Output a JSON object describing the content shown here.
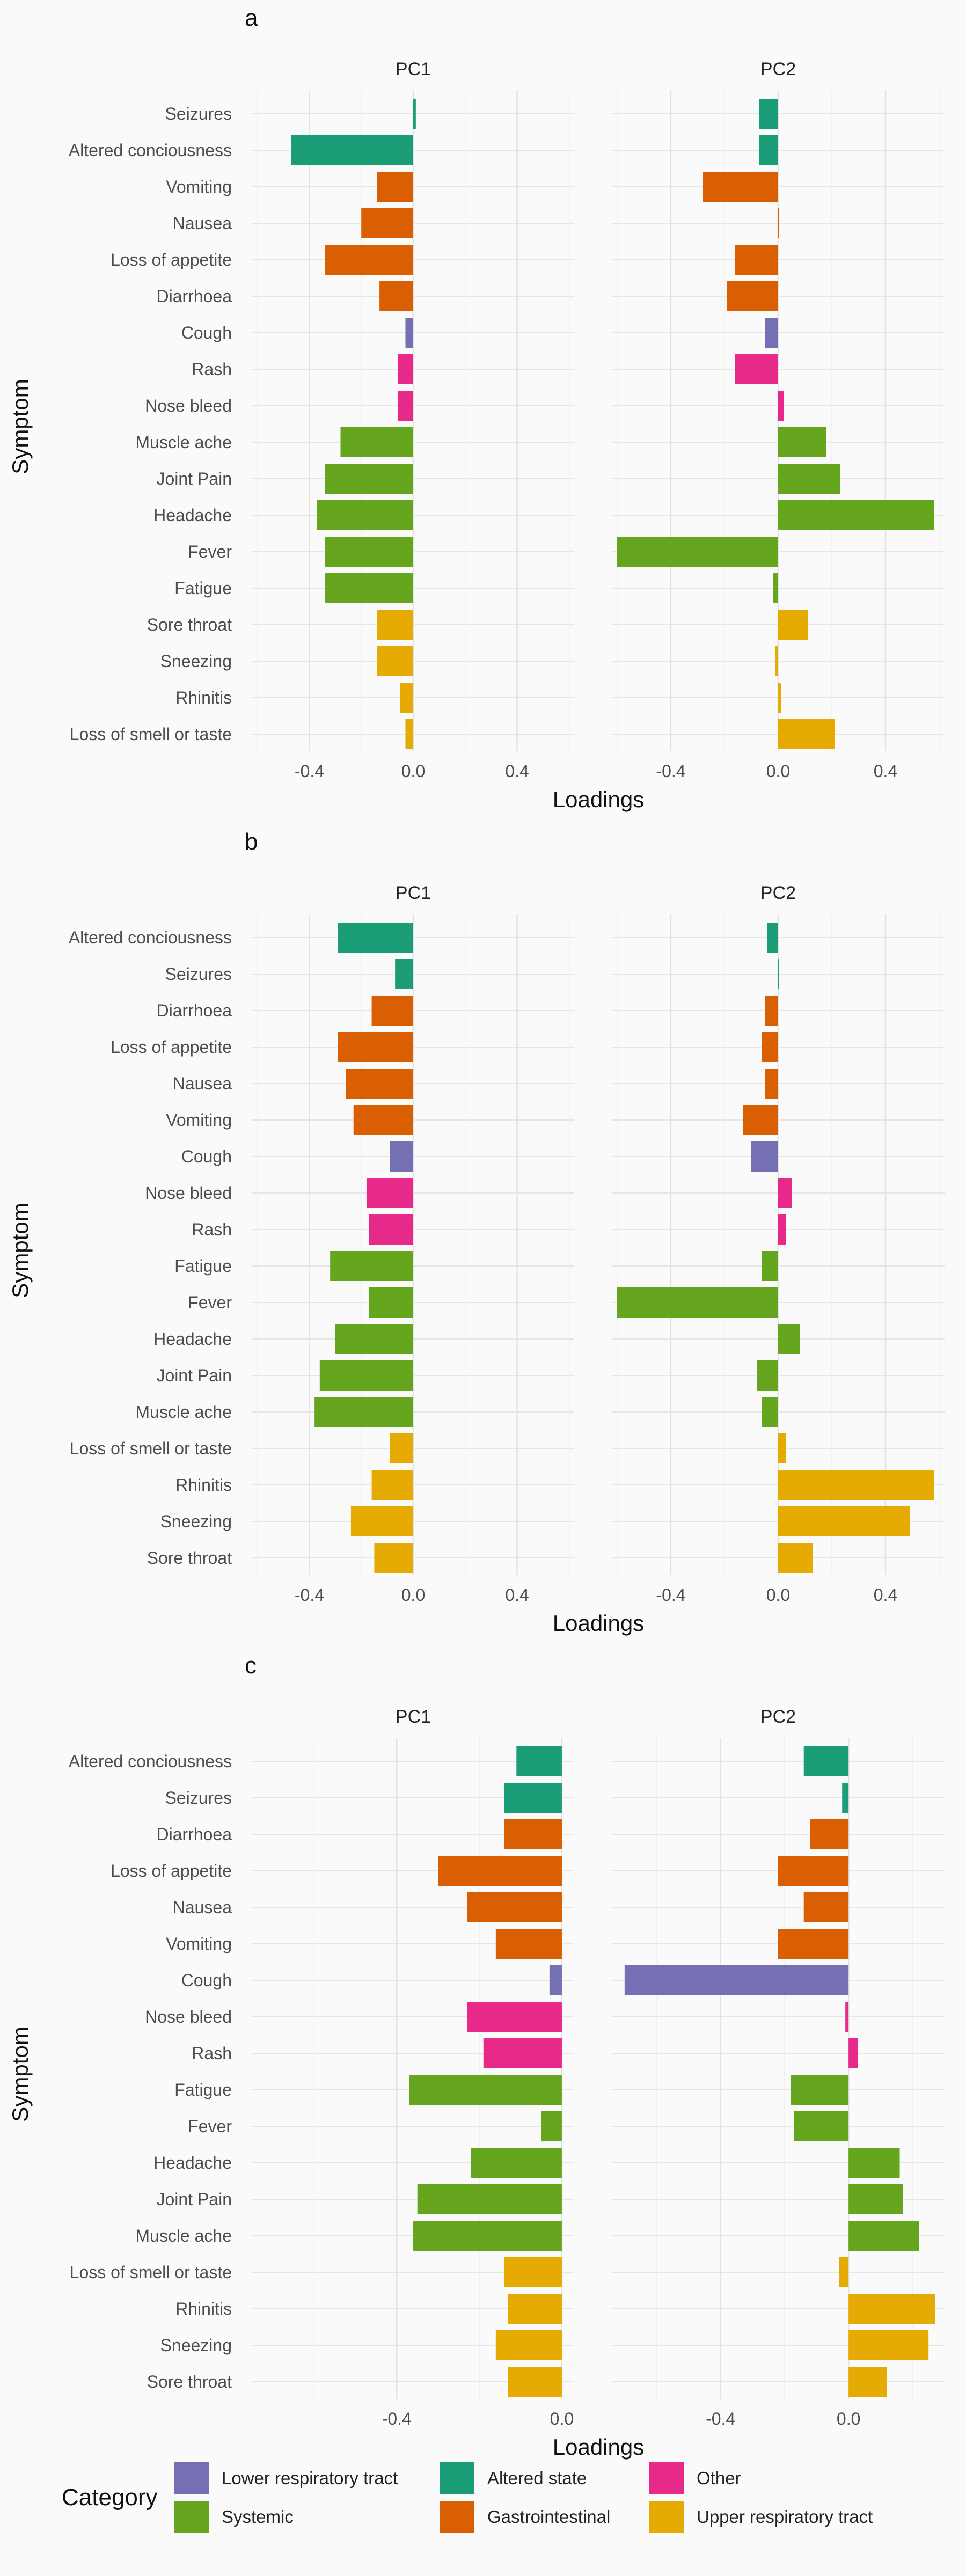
{
  "colors": {
    "Lower respiratory tract": "#7570b3",
    "Altered state": "#1b9e77",
    "Other": "#e7298a",
    "Systemic": "#66a61e",
    "Gastrointestinal": "#d95f02",
    "Upper respiratory tract": "#e6ab02"
  },
  "legend": {
    "title": "Category",
    "entries": [
      {
        "label": "Lower respiratory tract",
        "category": "Lower respiratory tract"
      },
      {
        "label": "Altered state",
        "category": "Altered state"
      },
      {
        "label": "Other",
        "category": "Other"
      },
      {
        "label": "Systemic",
        "category": "Systemic"
      },
      {
        "label": "Gastrointestinal",
        "category": "Gastrointestinal"
      },
      {
        "label": "Upper respiratory tract",
        "category": "Upper respiratory tract"
      }
    ]
  },
  "chart_data": [
    {
      "type": "bar",
      "panel_label": "a",
      "xlabel": "Loadings",
      "ylabel": "Symptom",
      "facets": [
        "PC1",
        "PC2"
      ],
      "facet_ranges": {
        "PC1": [
          -0.62,
          0.62
        ],
        "PC2": [
          -0.62,
          0.62
        ]
      },
      "facet_ticks": {
        "PC1": [
          -0.4,
          0.0,
          0.4
        ],
        "PC2": [
          -0.4,
          0.0,
          0.4
        ]
      },
      "tick_labels": {
        "PC1": [
          "-0.4",
          "0.0",
          "0.4"
        ],
        "PC2": [
          "-0.4",
          "0.0",
          "0.4"
        ]
      },
      "grid": true,
      "rows": [
        {
          "symptom": "Seizures",
          "category": "Altered state",
          "PC1": 0.01,
          "PC2": -0.07
        },
        {
          "symptom": "Altered conciousness",
          "category": "Altered state",
          "PC1": -0.47,
          "PC2": -0.07
        },
        {
          "symptom": "Vomiting",
          "category": "Gastrointestinal",
          "PC1": -0.14,
          "PC2": -0.28
        },
        {
          "symptom": "Nausea",
          "category": "Gastrointestinal",
          "PC1": -0.2,
          "PC2": 0.0
        },
        {
          "symptom": "Loss of appetite",
          "category": "Gastrointestinal",
          "PC1": -0.34,
          "PC2": -0.16
        },
        {
          "symptom": "Diarrhoea",
          "category": "Gastrointestinal",
          "PC1": -0.13,
          "PC2": -0.19
        },
        {
          "symptom": "Cough",
          "category": "Lower respiratory tract",
          "PC1": -0.03,
          "PC2": -0.05
        },
        {
          "symptom": "Rash",
          "category": "Other",
          "PC1": -0.06,
          "PC2": -0.16
        },
        {
          "symptom": "Nose bleed",
          "category": "Other",
          "PC1": -0.06,
          "PC2": 0.02
        },
        {
          "symptom": "Muscle ache",
          "category": "Systemic",
          "PC1": -0.28,
          "PC2": 0.18
        },
        {
          "symptom": "Joint Pain",
          "category": "Systemic",
          "PC1": -0.34,
          "PC2": 0.23
        },
        {
          "symptom": "Headache",
          "category": "Systemic",
          "PC1": -0.37,
          "PC2": 0.58
        },
        {
          "symptom": "Fever",
          "category": "Systemic",
          "PC1": -0.34,
          "PC2": -0.6
        },
        {
          "symptom": "Fatigue",
          "category": "Systemic",
          "PC1": -0.34,
          "PC2": -0.02
        },
        {
          "symptom": "Sore throat",
          "category": "Upper respiratory tract",
          "PC1": -0.14,
          "PC2": 0.11
        },
        {
          "symptom": "Sneezing",
          "category": "Upper respiratory tract",
          "PC1": -0.14,
          "PC2": -0.01
        },
        {
          "symptom": "Rhinitis",
          "category": "Upper respiratory tract",
          "PC1": -0.05,
          "PC2": 0.01
        },
        {
          "symptom": "Loss of smell or taste",
          "category": "Upper respiratory tract",
          "PC1": -0.03,
          "PC2": 0.21
        }
      ]
    },
    {
      "type": "bar",
      "panel_label": "b",
      "xlabel": "Loadings",
      "ylabel": "Symptom",
      "facets": [
        "PC1",
        "PC2"
      ],
      "facet_ranges": {
        "PC1": [
          -0.62,
          0.62
        ],
        "PC2": [
          -0.62,
          0.62
        ]
      },
      "facet_ticks": {
        "PC1": [
          -0.4,
          0.0,
          0.4
        ],
        "PC2": [
          -0.4,
          0.0,
          0.4
        ]
      },
      "tick_labels": {
        "PC1": [
          "-0.4",
          "0.0",
          "0.4"
        ],
        "PC2": [
          "-0.4",
          "0.0",
          "0.4"
        ]
      },
      "grid": true,
      "rows": [
        {
          "symptom": "Altered conciousness",
          "category": "Altered state",
          "PC1": -0.29,
          "PC2": -0.04
        },
        {
          "symptom": "Seizures",
          "category": "Altered state",
          "PC1": -0.07,
          "PC2": 0.0
        },
        {
          "symptom": "Diarrhoea",
          "category": "Gastrointestinal",
          "PC1": -0.16,
          "PC2": -0.05
        },
        {
          "symptom": "Loss of appetite",
          "category": "Gastrointestinal",
          "PC1": -0.29,
          "PC2": -0.06
        },
        {
          "symptom": "Nausea",
          "category": "Gastrointestinal",
          "PC1": -0.26,
          "PC2": -0.05
        },
        {
          "symptom": "Vomiting",
          "category": "Gastrointestinal",
          "PC1": -0.23,
          "PC2": -0.13
        },
        {
          "symptom": "Cough",
          "category": "Lower respiratory tract",
          "PC1": -0.09,
          "PC2": -0.1
        },
        {
          "symptom": "Nose bleed",
          "category": "Other",
          "PC1": -0.18,
          "PC2": 0.05
        },
        {
          "symptom": "Rash",
          "category": "Other",
          "PC1": -0.17,
          "PC2": 0.03
        },
        {
          "symptom": "Fatigue",
          "category": "Systemic",
          "PC1": -0.32,
          "PC2": -0.06
        },
        {
          "symptom": "Fever",
          "category": "Systemic",
          "PC1": -0.17,
          "PC2": -0.6
        },
        {
          "symptom": "Headache",
          "category": "Systemic",
          "PC1": -0.3,
          "PC2": 0.08
        },
        {
          "symptom": "Joint Pain",
          "category": "Systemic",
          "PC1": -0.36,
          "PC2": -0.08
        },
        {
          "symptom": "Muscle ache",
          "category": "Systemic",
          "PC1": -0.38,
          "PC2": -0.06
        },
        {
          "symptom": "Loss of smell or taste",
          "category": "Upper respiratory tract",
          "PC1": -0.09,
          "PC2": 0.03
        },
        {
          "symptom": "Rhinitis",
          "category": "Upper respiratory tract",
          "PC1": -0.16,
          "PC2": 0.58
        },
        {
          "symptom": "Sneezing",
          "category": "Upper respiratory tract",
          "PC1": -0.24,
          "PC2": 0.49
        },
        {
          "symptom": "Sore throat",
          "category": "Upper respiratory tract",
          "PC1": -0.15,
          "PC2": 0.13
        }
      ]
    },
    {
      "type": "bar",
      "panel_label": "c",
      "xlabel": "Loadings",
      "ylabel": "Symptom",
      "facets": [
        "PC1",
        "PC2"
      ],
      "facet_ranges": {
        "PC1": [
          -0.75,
          0.03
        ],
        "PC2": [
          -0.74,
          0.3
        ]
      },
      "facet_ticks": {
        "PC1": [
          -0.4,
          0.0
        ],
        "PC2": [
          -0.4,
          0.0
        ]
      },
      "tick_labels": {
        "PC1": [
          "-0.4",
          "0.0"
        ],
        "PC2": [
          "-0.4",
          "0.0"
        ]
      },
      "grid": true,
      "rows": [
        {
          "symptom": "Altered conciousness",
          "category": "Altered state",
          "PC1": -0.11,
          "PC2": -0.14
        },
        {
          "symptom": "Seizures",
          "category": "Altered state",
          "PC1": -0.14,
          "PC2": -0.02
        },
        {
          "symptom": "Diarrhoea",
          "category": "Gastrointestinal",
          "PC1": -0.14,
          "PC2": -0.12
        },
        {
          "symptom": "Loss of appetite",
          "category": "Gastrointestinal",
          "PC1": -0.3,
          "PC2": -0.22
        },
        {
          "symptom": "Nausea",
          "category": "Gastrointestinal",
          "PC1": -0.23,
          "PC2": -0.14
        },
        {
          "symptom": "Vomiting",
          "category": "Gastrointestinal",
          "PC1": -0.16,
          "PC2": -0.22
        },
        {
          "symptom": "Cough",
          "category": "Lower respiratory tract",
          "PC1": -0.03,
          "PC2": -0.7
        },
        {
          "symptom": "Nose bleed",
          "category": "Other",
          "PC1": -0.23,
          "PC2": -0.01
        },
        {
          "symptom": "Rash",
          "category": "Other",
          "PC1": -0.19,
          "PC2": 0.03
        },
        {
          "symptom": "Fatigue",
          "category": "Systemic",
          "PC1": -0.37,
          "PC2": -0.18
        },
        {
          "symptom": "Fever",
          "category": "Systemic",
          "PC1": -0.05,
          "PC2": -0.17
        },
        {
          "symptom": "Headache",
          "category": "Systemic",
          "PC1": -0.22,
          "PC2": 0.16
        },
        {
          "symptom": "Joint Pain",
          "category": "Systemic",
          "PC1": -0.35,
          "PC2": 0.17
        },
        {
          "symptom": "Muscle ache",
          "category": "Systemic",
          "PC1": -0.36,
          "PC2": 0.22
        },
        {
          "symptom": "Loss of smell or taste",
          "category": "Upper respiratory tract",
          "PC1": -0.14,
          "PC2": -0.03
        },
        {
          "symptom": "Rhinitis",
          "category": "Upper respiratory tract",
          "PC1": -0.13,
          "PC2": 0.27
        },
        {
          "symptom": "Sneezing",
          "category": "Upper respiratory tract",
          "PC1": -0.16,
          "PC2": 0.25
        },
        {
          "symptom": "Sore throat",
          "category": "Upper respiratory tract",
          "PC1": -0.13,
          "PC2": 0.12
        }
      ]
    }
  ]
}
